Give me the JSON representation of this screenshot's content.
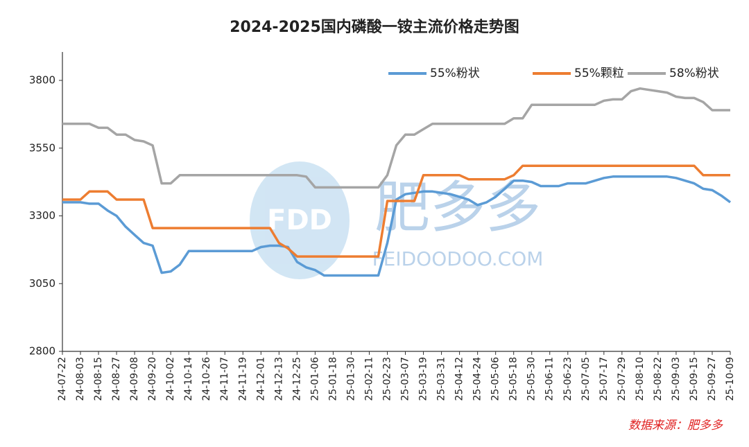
{
  "chart_data": {
    "type": "line",
    "title": "2024-2025国内磷酸一铵主流价格走势图",
    "source": "数据来源：肥多多",
    "watermark": [
      "FDD",
      "肥多多",
      "FEIDOODOO.COM"
    ],
    "categories": [
      "24-07-22",
      null,
      "24-08-03",
      null,
      "24-08-15",
      null,
      "24-08-27",
      null,
      "24-09-08",
      null,
      "24-09-20",
      null,
      "24-10-02",
      null,
      "24-10-14",
      null,
      "24-10-26",
      null,
      "24-11-07",
      null,
      "24-11-19",
      null,
      "24-12-01",
      null,
      "24-12-13",
      null,
      "24-12-25",
      null,
      "25-01-06",
      null,
      "25-01-18",
      null,
      "25-01-30",
      null,
      "25-02-11",
      null,
      "25-02-23",
      null,
      "25-03-07",
      null,
      "25-03-19",
      null,
      "25-03-31",
      null,
      "25-04-12",
      null,
      "25-04-24",
      null,
      "25-05-06",
      null,
      "25-05-18",
      null,
      "25-05-30",
      null,
      "25-06-11",
      null,
      "25-06-23",
      null,
      "25-07-05",
      null,
      "25-07-17",
      null,
      "25-07-29",
      null,
      "25-08-10",
      null,
      "25-08-22",
      null,
      "25-09-03",
      null,
      "25-09-15",
      null,
      "25-09-27",
      null,
      "25-10-09"
    ],
    "series": [
      {
        "name": "55%粉状",
        "color": "#5b9bd5",
        "values": [
          3350,
          3350,
          3350,
          3345,
          3345,
          3320,
          3300,
          3260,
          3230,
          3200,
          3190,
          3090,
          3095,
          3120,
          3170,
          3170,
          3170,
          3170,
          3170,
          3170,
          3170,
          3170,
          3185,
          3190,
          3190,
          3185,
          3130,
          3110,
          3100,
          3080,
          3080,
          3080,
          3080,
          3080,
          3080,
          3080,
          3200,
          3360,
          3380,
          3385,
          3390,
          3390,
          3385,
          3380,
          3370,
          3360,
          3340,
          3350,
          3370,
          3400,
          3430,
          3430,
          3425,
          3410,
          3410,
          3410,
          3420,
          3420,
          3420,
          3430,
          3440,
          3445,
          3445,
          3445,
          3445,
          3445,
          3445,
          3445,
          3440,
          3430,
          3420,
          3400,
          3395,
          3375,
          3350
        ]
      },
      {
        "name": "55%颗粒",
        "color": "#ed7d31",
        "values": [
          3360,
          3360,
          3360,
          3390,
          3390,
          3390,
          3360,
          3360,
          3360,
          3360,
          3255,
          3255,
          3255,
          3255,
          3255,
          3255,
          3255,
          3255,
          3255,
          3255,
          3255,
          3255,
          3255,
          3255,
          3200,
          3180,
          3150,
          3150,
          3150,
          3150,
          3150,
          3150,
          3150,
          3150,
          3150,
          3150,
          3355,
          3355,
          3355,
          3355,
          3450,
          3450,
          3450,
          3450,
          3450,
          3435,
          3435,
          3435,
          3435,
          3435,
          3450,
          3485,
          3485,
          3485,
          3485,
          3485,
          3485,
          3485,
          3485,
          3485,
          3485,
          3485,
          3485,
          3485,
          3485,
          3485,
          3485,
          3485,
          3485,
          3485,
          3485,
          3450,
          3450,
          3450,
          3450
        ]
      },
      {
        "name": "58%粉状",
        "color": "#a5a5a5",
        "values": [
          3640,
          3640,
          3640,
          3640,
          3625,
          3625,
          3600,
          3600,
          3580,
          3575,
          3560,
          3420,
          3420,
          3450,
          3450,
          3450,
          3450,
          3450,
          3450,
          3450,
          3450,
          3450,
          3450,
          3450,
          3450,
          3450,
          3450,
          3445,
          3405,
          3405,
          3405,
          3405,
          3405,
          3405,
          3405,
          3405,
          3450,
          3560,
          3600,
          3600,
          3620,
          3640,
          3640,
          3640,
          3640,
          3640,
          3640,
          3640,
          3640,
          3640,
          3660,
          3660,
          3710,
          3710,
          3710,
          3710,
          3710,
          3710,
          3710,
          3710,
          3725,
          3730,
          3730,
          3760,
          3770,
          3765,
          3760,
          3755,
          3740,
          3735,
          3735,
          3720,
          3690,
          3690,
          3690
        ]
      }
    ],
    "ylim": [
      2800,
      3800
    ],
    "yticks": [
      2800,
      3050,
      3300,
      3550,
      3800
    ]
  }
}
